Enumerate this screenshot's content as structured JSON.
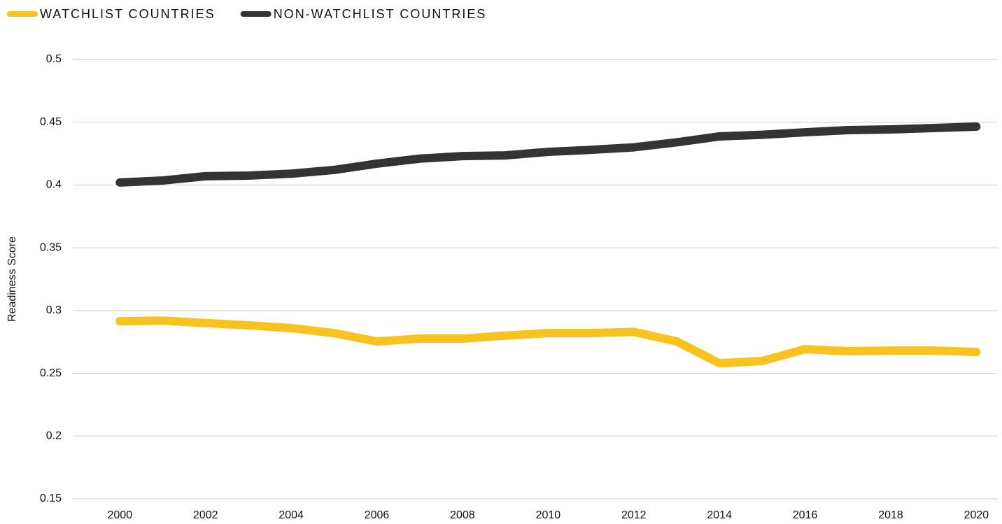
{
  "chart_data": {
    "type": "line",
    "y_label": "Readiness Score",
    "x": [
      2000,
      2001,
      2002,
      2003,
      2004,
      2005,
      2006,
      2007,
      2008,
      2009,
      2010,
      2011,
      2012,
      2013,
      2014,
      2015,
      2016,
      2017,
      2018,
      2019,
      2020
    ],
    "series": [
      {
        "name": "WATCHLIST COUNTRIES",
        "color": "#f9c31f",
        "values": [
          0.2915,
          0.292,
          0.29,
          0.2882,
          0.286,
          0.282,
          0.2754,
          0.2776,
          0.2776,
          0.28,
          0.282,
          0.282,
          0.283,
          0.2754,
          0.258,
          0.2598,
          0.2692,
          0.2676,
          0.2681,
          0.2681,
          0.267
        ]
      },
      {
        "name": "NON-WATCHLIST COUNTRIES",
        "color": "#333333",
        "values": [
          0.402,
          0.4036,
          0.407,
          0.4075,
          0.409,
          0.412,
          0.417,
          0.421,
          0.423,
          0.4236,
          0.4264,
          0.428,
          0.43,
          0.434,
          0.4387,
          0.44,
          0.442,
          0.4437,
          0.4443,
          0.4454,
          0.4465
        ]
      }
    ],
    "xlim": [
      1998.9,
      2020.5
    ],
    "xticks": [
      2000,
      2002,
      2004,
      2006,
      2008,
      2010,
      2012,
      2014,
      2016,
      2018,
      2020
    ],
    "ylim": [
      0.15,
      0.5
    ],
    "yticks": [
      0.15,
      0.2,
      0.25,
      0.3,
      0.35,
      0.4,
      0.45,
      0.5
    ],
    "grid": true,
    "legend": "top-left"
  }
}
